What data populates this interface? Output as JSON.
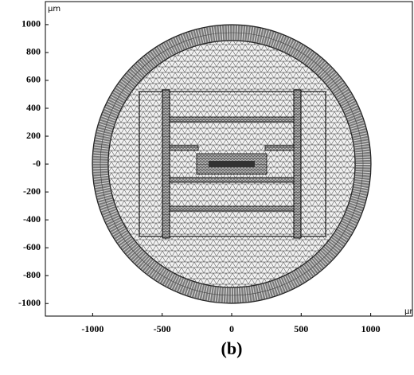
{
  "chart_data": {
    "type": "mesh",
    "x_unit": "µr",
    "y_unit": "µm",
    "caption": "(b)",
    "xlim": [
      -1340,
      1300
    ],
    "ylim": [
      -1090,
      1165
    ],
    "xticks": [
      -1000,
      -500,
      0,
      500,
      1000
    ],
    "yticks": [
      -1000,
      -800,
      -600,
      -400,
      -200,
      {
        "value": 0,
        "label": "-0"
      },
      200,
      400,
      600,
      800,
      1000
    ]
  }
}
